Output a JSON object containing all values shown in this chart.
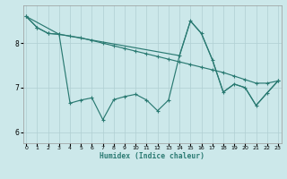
{
  "xlabel": "Humidex (Indice chaleur)",
  "bg_color": "#cce8ea",
  "grid_color": "#b0cfd2",
  "line_color": "#2a7a72",
  "xlim": [
    -0.3,
    23.3
  ],
  "ylim": [
    5.75,
    8.85
  ],
  "yticks": [
    6,
    7,
    8
  ],
  "xticks": [
    0,
    1,
    2,
    3,
    4,
    5,
    6,
    7,
    8,
    9,
    10,
    11,
    12,
    13,
    14,
    15,
    16,
    17,
    18,
    19,
    20,
    21,
    22,
    23
  ],
  "line1_x": [
    0,
    1,
    2,
    3,
    4,
    5,
    6,
    7,
    8,
    9,
    10,
    11,
    12,
    13,
    14,
    15,
    16,
    17,
    18,
    19,
    20,
    21,
    22,
    23
  ],
  "line1_y": [
    8.6,
    8.35,
    8.22,
    8.2,
    8.16,
    8.12,
    8.06,
    8.0,
    7.94,
    7.88,
    7.82,
    7.76,
    7.7,
    7.64,
    7.58,
    7.52,
    7.46,
    7.4,
    7.34,
    7.26,
    7.18,
    7.1,
    7.1,
    7.15
  ],
  "line2_x": [
    0,
    1,
    2,
    3,
    4,
    5,
    6,
    7,
    8,
    9,
    10,
    11,
    12,
    13,
    14,
    15,
    16,
    17,
    18,
    19,
    20,
    21,
    22,
    23
  ],
  "line2_y": [
    8.6,
    8.35,
    8.22,
    8.2,
    6.65,
    6.72,
    6.77,
    6.28,
    6.73,
    6.8,
    6.85,
    6.72,
    6.48,
    6.72,
    7.72,
    8.5,
    8.22,
    7.63,
    6.9,
    7.08,
    7.0,
    6.6,
    6.88,
    7.15
  ],
  "line3_x": [
    0,
    3,
    14,
    15,
    16,
    17,
    18,
    19,
    20,
    21,
    22,
    23
  ],
  "line3_y": [
    8.6,
    8.2,
    7.72,
    8.5,
    8.22,
    7.63,
    6.9,
    7.08,
    7.0,
    6.6,
    6.88,
    7.15
  ]
}
